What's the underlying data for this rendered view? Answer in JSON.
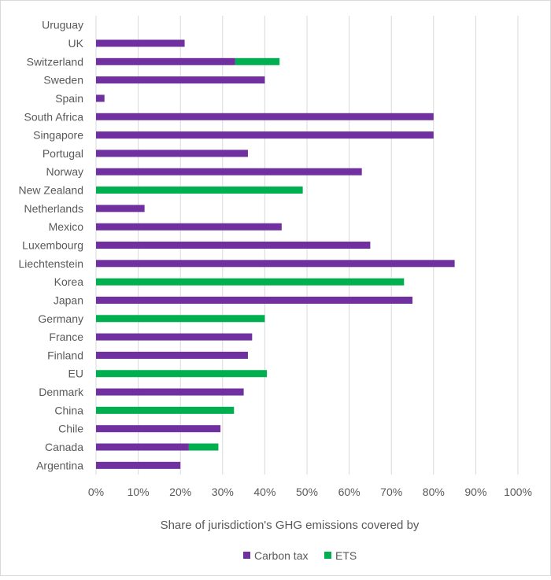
{
  "chart_data": {
    "type": "bar",
    "orientation": "horizontal",
    "stacked": true,
    "title": "",
    "xlabel": "Share of jurisdiction's GHG emissions covered by",
    "ylabel": "",
    "xlim": [
      0,
      100
    ],
    "x_tick_values": [
      0,
      10,
      20,
      30,
      40,
      50,
      60,
      70,
      80,
      90,
      100
    ],
    "x_tick_labels": [
      "0%",
      "10%",
      "20%",
      "30%",
      "40%",
      "50%",
      "60%",
      "70%",
      "80%",
      "90%",
      "100%"
    ],
    "grid": true,
    "legend_position": "bottom",
    "categories": [
      "Uruguay",
      "UK",
      "Switzerland",
      "Sweden",
      "Spain",
      "South Africa",
      "Singapore",
      "Portugal",
      "Norway",
      "New Zealand",
      "Netherlands",
      "Mexico",
      "Luxembourg",
      "Liechtenstein",
      "Korea",
      "Japan",
      "Germany",
      "France",
      "Finland",
      "EU",
      "Denmark",
      "China",
      "Chile",
      "Canada",
      "Argentina"
    ],
    "series": [
      {
        "name": "Carbon tax",
        "color": "#7030a0",
        "values": [
          0,
          21,
          33,
          40,
          2,
          80,
          80,
          36,
          63,
          0,
          11.5,
          44,
          65,
          85,
          0,
          75,
          0,
          37,
          36,
          0,
          35,
          0,
          29.5,
          22,
          20
        ]
      },
      {
        "name": "ETS",
        "color": "#00b050",
        "values": [
          0,
          0,
          10.5,
          0,
          0,
          0,
          0,
          0,
          0,
          49,
          0,
          0,
          0,
          0,
          73,
          0,
          40,
          0,
          0,
          40.5,
          0,
          32.7,
          0,
          7,
          0
        ]
      }
    ]
  }
}
